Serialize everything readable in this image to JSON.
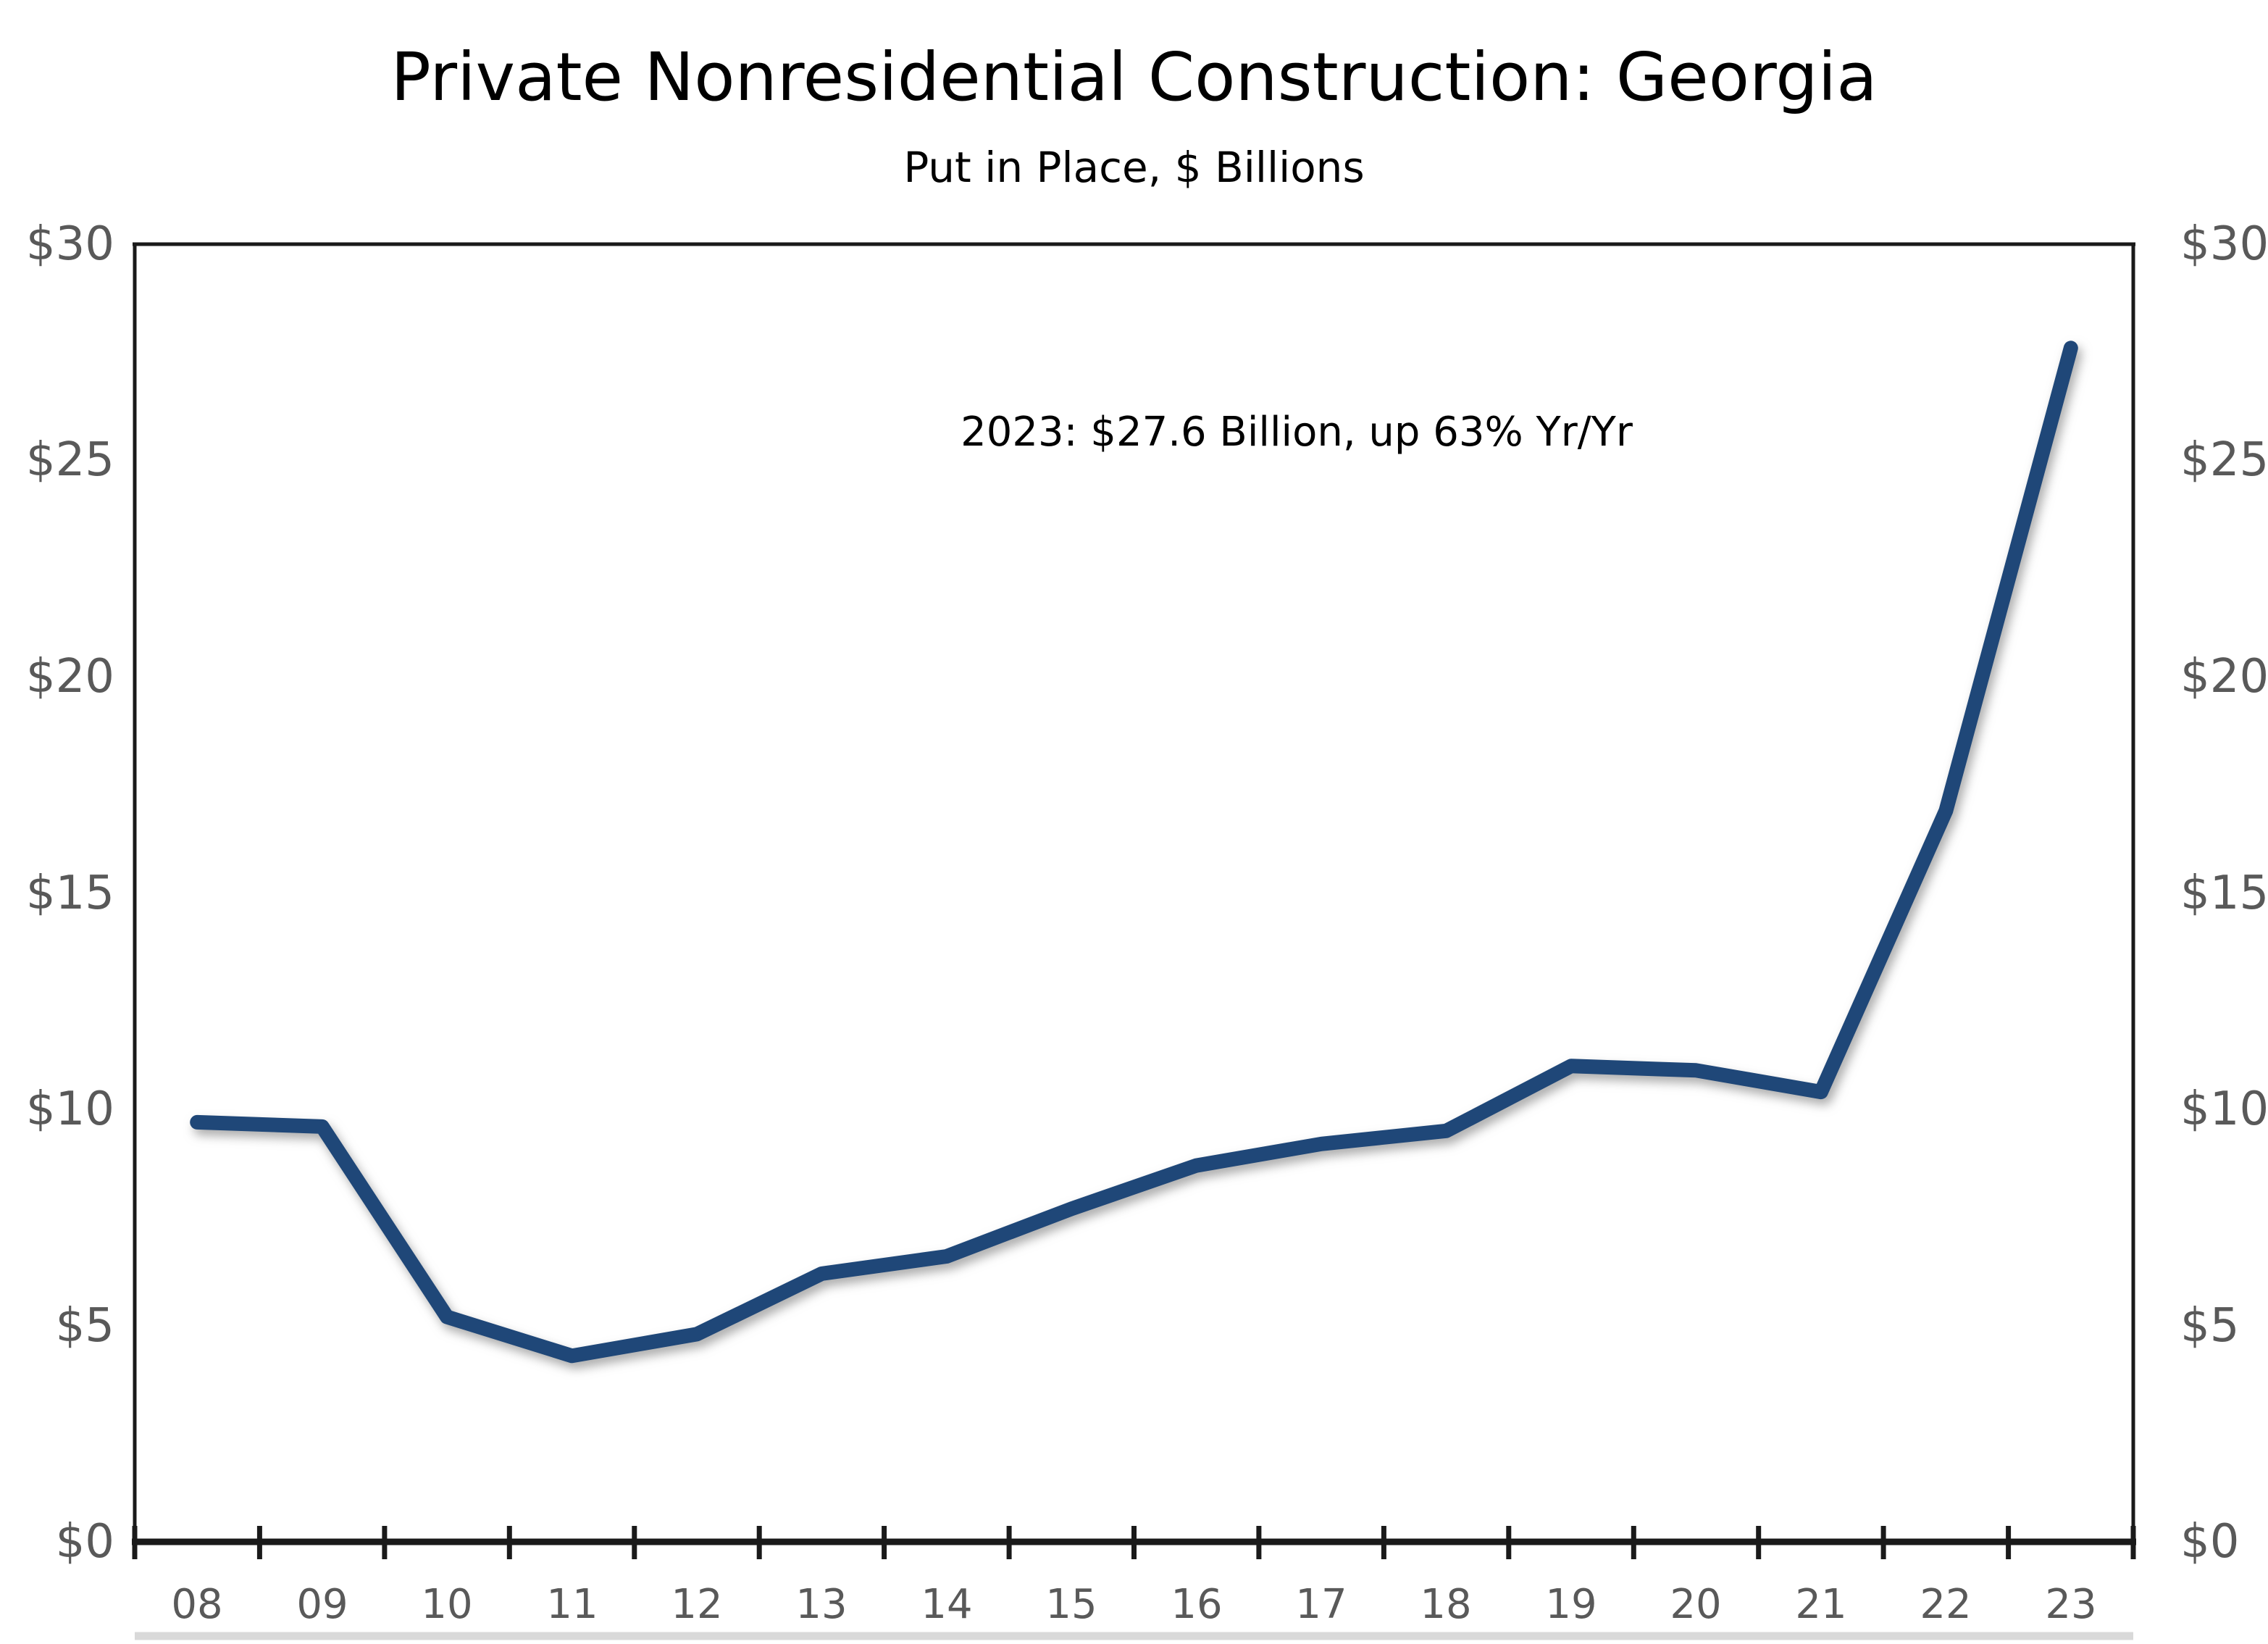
{
  "chart_data": {
    "type": "line",
    "title": "Private Nonresidential Construction: Georgia",
    "subtitle": "Put in Place, $ Billions",
    "annotation": "2023: $27.6 Billion, up 63% Yr/Yr",
    "categories": [
      "08",
      "09",
      "10",
      "11",
      "12",
      "13",
      "14",
      "15",
      "16",
      "17",
      "18",
      "19",
      "20",
      "21",
      "22",
      "23"
    ],
    "values": [
      9.7,
      9.6,
      5.2,
      4.3,
      4.8,
      6.2,
      6.6,
      7.7,
      8.7,
      9.2,
      9.5,
      11.0,
      10.9,
      10.4,
      16.9,
      27.6
    ],
    "series_name": "Private Nonresidential Construction Put in Place, Georgia",
    "xlabel": "",
    "ylabel": "$ Billions",
    "ylim": [
      0,
      30
    ],
    "y_tick_step": 5,
    "y_ticks": [
      "$30",
      "$25",
      "$20",
      "$15",
      "$10",
      "$5",
      "$0"
    ],
    "y_axis_sides": "both",
    "grid": false,
    "legend_position": "none"
  },
  "colors": {
    "line": "#1F4778",
    "axis": "#1A1A1A",
    "tick_label": "#595959",
    "text": "#000000",
    "bottom_rule": "#D9D9D9",
    "background": "#FFFFFF"
  }
}
